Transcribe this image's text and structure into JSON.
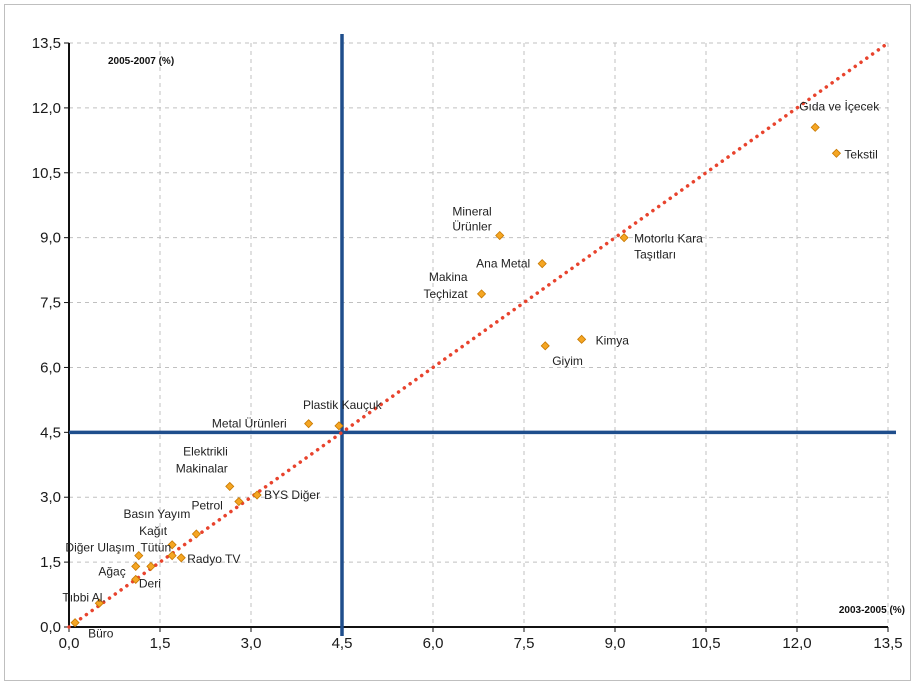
{
  "chart_data": {
    "type": "scatter",
    "title": "",
    "xlabel": "2003-2005 (%)",
    "ylabel": "2005-2007 (%)",
    "xlim": [
      0,
      13.5
    ],
    "ylim": [
      0,
      13.5
    ],
    "x_ticks": [
      "0,0",
      "1,5",
      "3,0",
      "4,5",
      "6,0",
      "7,5",
      "9,0",
      "10,5",
      "12,0",
      "13,5"
    ],
    "y_ticks": [
      "0,0",
      "1,5",
      "3,0",
      "4,5",
      "6,0",
      "7,5",
      "9,0",
      "10,5",
      "12,0",
      "13,5"
    ],
    "grid": true,
    "reference_lines": {
      "vertical_x": 4.5,
      "horizontal_y": 4.5,
      "diagonal": "y = x"
    },
    "colors": {
      "point": "#f5a623",
      "point_edge": "#c77800",
      "diagonal": "#e8432d",
      "reference": "#1f4e8c",
      "grid": "#c0c0c0"
    },
    "points": [
      {
        "label": "Gıda ve İçecek",
        "x": 12.3,
        "y": 11.55
      },
      {
        "label": "Tekstil",
        "x": 12.65,
        "y": 10.95
      },
      {
        "label": "Mineral Ürünler",
        "x": 7.1,
        "y": 9.05
      },
      {
        "label": "Motorlu Kara Taşıtları",
        "x": 9.15,
        "y": 9.0
      },
      {
        "label": "Ana Metal",
        "x": 7.8,
        "y": 8.4
      },
      {
        "label": "Makina Teçhizat",
        "x": 6.8,
        "y": 7.7
      },
      {
        "label": "Kimya",
        "x": 8.45,
        "y": 6.65
      },
      {
        "label": "Giyim",
        "x": 7.85,
        "y": 6.5
      },
      {
        "label": "Plastik Kauçuk",
        "x": 4.45,
        "y": 4.65
      },
      {
        "label": "Metal Ürünleri",
        "x": 3.95,
        "y": 4.7
      },
      {
        "label": "Elektrikli Makinalar",
        "x": 2.65,
        "y": 3.25
      },
      {
        "label": "BYS Diğer",
        "x": 3.1,
        "y": 3.05
      },
      {
        "label": "Petrol",
        "x": 2.8,
        "y": 2.9
      },
      {
        "label": "Basın Yayım",
        "x": 2.1,
        "y": 2.15
      },
      {
        "label": "Kağıt",
        "x": 1.7,
        "y": 1.9
      },
      {
        "label": "Diğer Ulaşım",
        "x": 1.15,
        "y": 1.65
      },
      {
        "label": "Tütün",
        "x": 1.7,
        "y": 1.65
      },
      {
        "label": "Radyo TV",
        "x": 1.85,
        "y": 1.6
      },
      {
        "label": "Ağaç",
        "x": 1.1,
        "y": 1.4
      },
      {
        "label": "Deri",
        "x": 1.35,
        "y": 1.4
      },
      {
        "label": "Tıbbi Al.",
        "x": 1.1,
        "y": 1.1
      },
      {
        "label": "",
        "x": 0.5,
        "y": 0.55
      },
      {
        "label": "Büro",
        "x": 0.1,
        "y": 0.1
      }
    ]
  }
}
